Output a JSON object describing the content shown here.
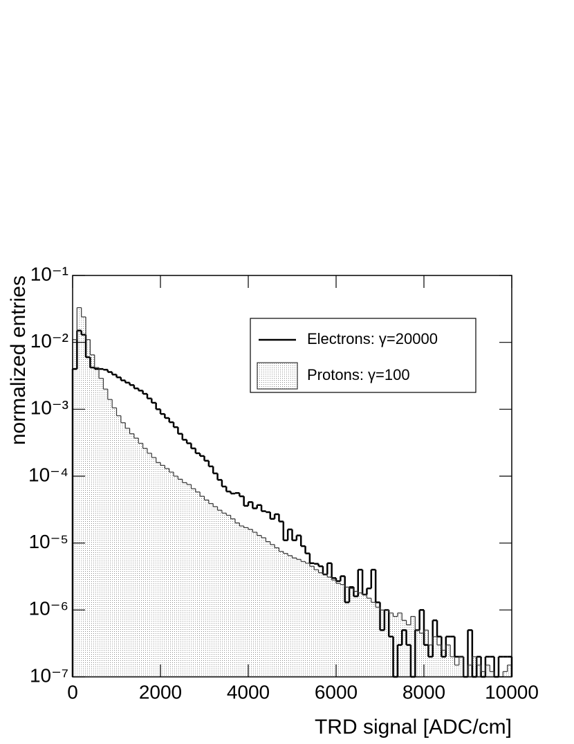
{
  "chart_data": {
    "type": "histogram",
    "x_label": "TRD signal [ADC/cm]",
    "y_label": "normalized entries",
    "yscale": "log",
    "xlim": [
      0,
      10000
    ],
    "ylim": [
      1e-07,
      0.1
    ],
    "xticks": [
      0,
      2000,
      4000,
      6000,
      8000,
      10000
    ],
    "yticks": [
      {
        "value": 1e-07,
        "label": "10⁻⁷"
      },
      {
        "value": 1e-06,
        "label": "10⁻⁶"
      },
      {
        "value": 1e-05,
        "label": "10⁻⁵"
      },
      {
        "value": 0.0001,
        "label": "10⁻⁴"
      },
      {
        "value": 0.001,
        "label": "10⁻³"
      },
      {
        "value": 0.01,
        "label": "10⁻²"
      },
      {
        "value": 0.1,
        "label": "10⁻¹"
      }
    ],
    "legend": "upper right",
    "bins": [
      0,
      100,
      200,
      300,
      400,
      500,
      600,
      700,
      800,
      900,
      1000,
      1100,
      1200,
      1300,
      1400,
      1500,
      1600,
      1700,
      1800,
      1900,
      2000,
      2100,
      2200,
      2300,
      2400,
      2500,
      2600,
      2700,
      2800,
      2900,
      3000,
      3100,
      3200,
      3300,
      3400,
      3500,
      3600,
      3700,
      3800,
      3900,
      4000,
      4100,
      4200,
      4300,
      4400,
      4500,
      4600,
      4700,
      4800,
      4900,
      5000,
      5100,
      5200,
      5300,
      5400,
      5500,
      5600,
      5700,
      5800,
      5900,
      6000,
      6100,
      6200,
      6300,
      6400,
      6500,
      6600,
      6700,
      6800,
      6900,
      7000,
      7100,
      7200,
      7300,
      7400,
      7500,
      7600,
      7700,
      7800,
      7900,
      8000,
      8100,
      8200,
      8300,
      8400,
      8500,
      8600,
      8700,
      8800,
      8900,
      9000,
      9100,
      9200,
      9300,
      9400,
      9500,
      9600,
      9700,
      9800,
      9900,
      10000
    ],
    "series": [
      {
        "name": "Electrons: γ=20000",
        "color": "#000000",
        "style": "line",
        "values": [
          0.004,
          0.015,
          0.013,
          0.006,
          0.0042,
          0.004,
          0.004,
          0.0039,
          0.0036,
          0.0033,
          0.003,
          0.0027,
          0.0025,
          0.0023,
          0.00205,
          0.0019,
          0.0017,
          0.00145,
          0.00125,
          0.001,
          0.00085,
          0.00074,
          0.00064,
          0.00054,
          0.00043,
          0.00035,
          0.00031,
          0.00026,
          0.00022,
          0.0002,
          0.00017,
          0.00014,
          0.00011,
          8.8e-05,
          7e-05,
          5.9e-05,
          5.5e-05,
          5.6e-05,
          5e-05,
          3.6e-05,
          4.1e-05,
          3.3e-05,
          3.7e-05,
          3e-05,
          2.9e-05,
          2.3e-05,
          2.7e-05,
          2.1e-05,
          1.1e-05,
          1.6e-05,
          1.1e-05,
          1.3e-05,
          9e-06,
          7e-06,
          5e-06,
          4.9e-06,
          4.5e-06,
          3.4e-06,
          5e-06,
          3e-06,
          2.7e-06,
          3.2e-06,
          1.3e-06,
          2.2e-06,
          1.6e-06,
          4e-06,
          1.7e-06,
          2.1e-06,
          4e-06,
          1.3e-06,
          5e-07,
          1e-06,
          4e-07,
          1e-07,
          3e-07,
          5e-07,
          3e-07,
          1e-07,
          5e-07,
          1e-06,
          3e-07,
          2e-07,
          7e-07,
          4e-07,
          2e-07,
          4e-07,
          4e-07,
          2e-07,
          2e-07,
          1e-07,
          5e-07,
          1e-07,
          2e-07,
          1e-07,
          2e-07,
          2e-07,
          1e-07,
          2e-07,
          2e-07,
          2e-07
        ]
      },
      {
        "name": "Protons: γ=100",
        "color": "#e6e6e6",
        "style": "filled",
        "values": [
          0.011,
          0.033,
          0.024,
          0.011,
          0.0065,
          0.0042,
          0.0029,
          0.002,
          0.0014,
          0.00105,
          0.0008,
          0.00063,
          0.00052,
          0.00043,
          0.00037,
          0.00031,
          0.00026,
          0.00022,
          0.00019,
          0.00016,
          0.000145,
          0.00013,
          0.000115,
          0.0001,
          9e-05,
          8e-05,
          7.5e-05,
          6.5e-05,
          5.8e-05,
          5e-05,
          4.4e-05,
          3.9e-05,
          3.5e-05,
          3.1e-05,
          2.8e-05,
          2.6e-05,
          2.3e-05,
          2e-05,
          1.8e-05,
          1.7e-05,
          1.6e-05,
          1.45e-05,
          1.3e-05,
          1.2e-05,
          1.05e-05,
          9.5e-06,
          8.5e-06,
          7.5e-06,
          7e-06,
          6.5e-06,
          6e-06,
          5.7e-06,
          5.3e-06,
          5e-06,
          4.5e-06,
          4e-06,
          3.6e-06,
          3.4e-06,
          3.1e-06,
          2.8e-06,
          2.5e-06,
          2.4e-06,
          2.2e-06,
          2.1e-06,
          1.9e-06,
          1.8e-06,
          1.7e-06,
          1.5e-06,
          1.3e-06,
          1.1e-06,
          1e-06,
          1e-06,
          9e-07,
          8e-07,
          9e-07,
          7e-07,
          6e-07,
          8e-07,
          5e-07,
          4.5e-07,
          5e-07,
          3e-07,
          4e-07,
          3e-07,
          2.5e-07,
          3e-07,
          2e-07,
          1.5e-07,
          2e-07,
          1e-07,
          1.5e-07,
          2e-07,
          1.5e-07,
          1.2e-07,
          1.5e-07,
          1.2e-07,
          1e-07,
          1e-07,
          1.2e-07,
          1.5e-07
        ]
      }
    ]
  }
}
